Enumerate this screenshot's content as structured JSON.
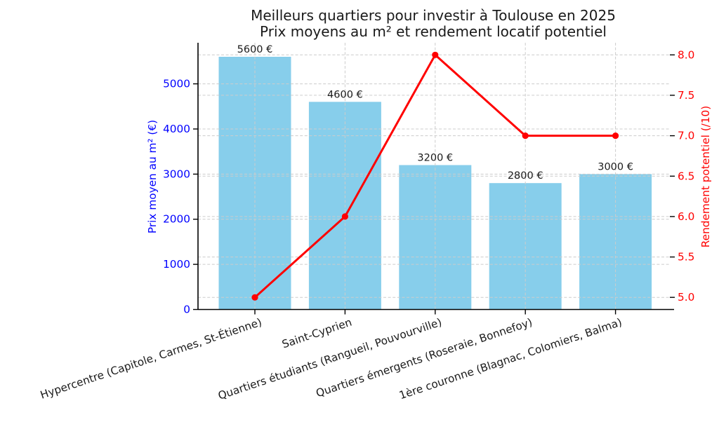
{
  "chart_data": {
    "type": "combo",
    "title": "Meilleurs quartiers pour investir à Toulouse en 2025",
    "subtitle": "Prix moyens au m² et rendement locatif potentiel",
    "categories": [
      "Hypercentre (Capitole, Carmes, St-Étienne)",
      "Saint-Cyprien",
      "Quartiers étudiants (Rangueil, Pouvourville)",
      "Quartiers émergents (Roseraie, Bonnefoy)",
      "1ère couronne (Blagnac, Colomiers, Balma)"
    ],
    "series": [
      {
        "name": "Prix moyen au m²",
        "type": "bar",
        "axis": "left",
        "color": "#87CEEB",
        "values": [
          5600,
          4600,
          3200,
          2800,
          3000
        ],
        "point_labels": [
          "5600 €",
          "4600 €",
          "3200 €",
          "2800 €",
          "3000 €"
        ]
      },
      {
        "name": "Rendement potentiel",
        "type": "line",
        "axis": "right",
        "color": "#FF0000",
        "values": [
          5.0,
          6.0,
          8.0,
          7.0,
          7.0
        ]
      }
    ],
    "left_axis": {
      "label": "Prix moyen au m² (€)",
      "color": "#0000FF",
      "ticks": [
        0,
        1000,
        2000,
        3000,
        4000,
        5000
      ],
      "range": [
        0,
        5910
      ]
    },
    "right_axis": {
      "label": "Rendement potentiel (/10)",
      "color": "#FF0000",
      "ticks": [
        5.0,
        5.5,
        6.0,
        6.5,
        7.0,
        7.5,
        8.0
      ],
      "range": [
        4.85,
        8.15
      ],
      "tick_decimals": 1
    },
    "grid": {
      "visible": true,
      "color": "#cccccc",
      "style": "dashed"
    },
    "text_color": "#1a1a1a",
    "legend_position": "none"
  }
}
